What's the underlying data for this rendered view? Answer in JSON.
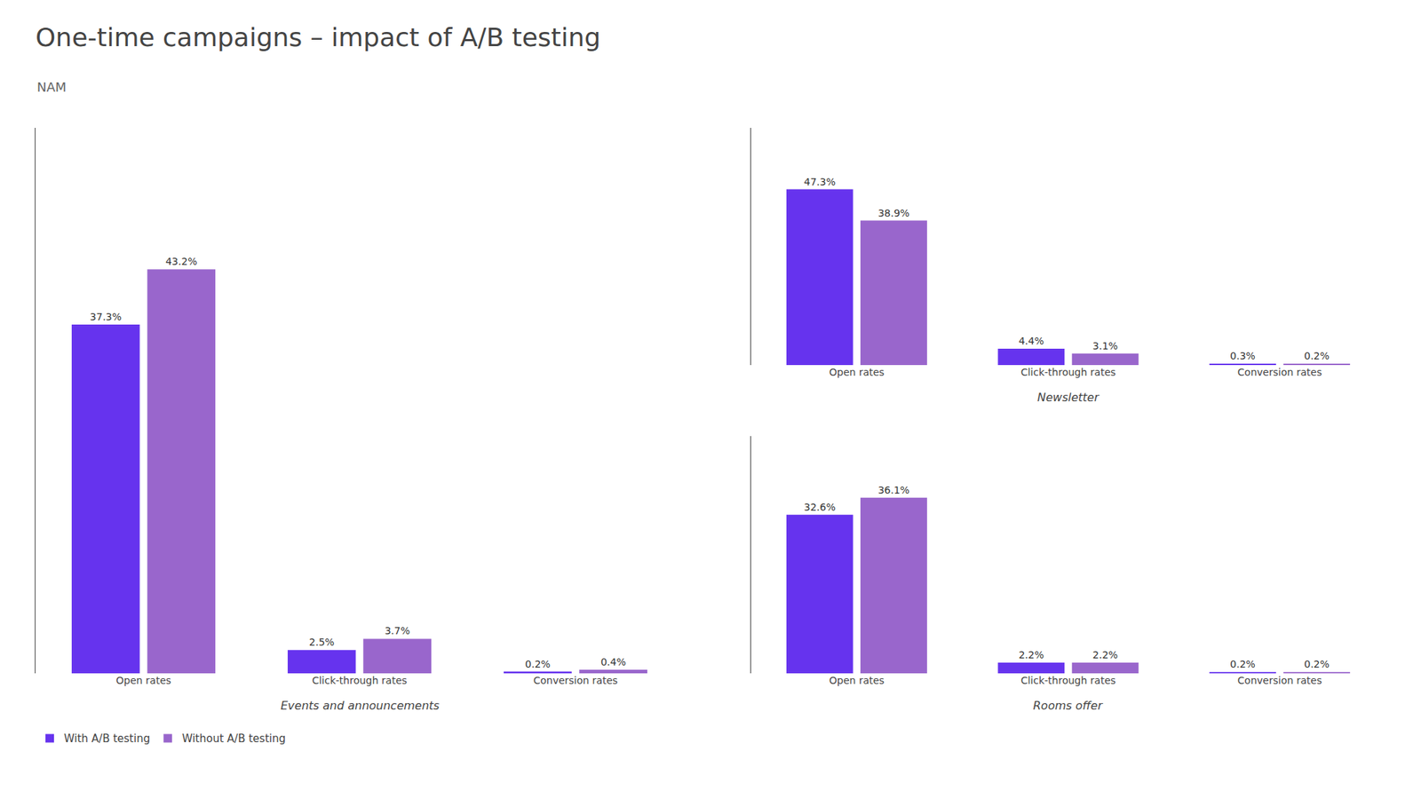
{
  "title": "One-time campaigns – impact of A/B testing",
  "subtitle": "NAM",
  "legend": "lower left",
  "chart_data": [
    {
      "type": "bar",
      "title": "Events and announcements",
      "categories": [
        "Open rates",
        "Click-through rates",
        "Conversion rates"
      ],
      "series": [
        {
          "name": "With A/B testing",
          "color": "#6633ee",
          "values": [
            37.3,
            2.5,
            0.2
          ],
          "value_labels": [
            "37.3%",
            "2.5%",
            "0.2%"
          ]
        },
        {
          "name": "Without A/B testing",
          "color": "#9966cc",
          "values": [
            43.2,
            3.7,
            0.4
          ],
          "value_labels": [
            "43.2%",
            "3.7%",
            "0.4%"
          ]
        }
      ],
      "ylim": [
        0,
        58.32
      ],
      "data_labels": true,
      "tick_labels": "x",
      "grid": false
    },
    {
      "type": "bar",
      "title": "Newsletter",
      "categories": [
        "Open rates",
        "Click-through rates",
        "Conversion rates"
      ],
      "series": [
        {
          "name": "With A/B testing",
          "color": "#6633ee",
          "values": [
            47.3,
            4.4,
            0.3
          ],
          "value_labels": [
            "47.3%",
            "4.4%",
            "0.3%"
          ]
        },
        {
          "name": "Without A/B testing",
          "color": "#9966cc",
          "values": [
            38.9,
            3.1,
            0.2
          ],
          "value_labels": [
            "38.9%",
            "3.1%",
            "0.2%"
          ]
        }
      ],
      "ylim": [
        0,
        63.855
      ],
      "data_labels": true,
      "tick_labels": "x",
      "grid": false
    },
    {
      "type": "bar",
      "title": "Rooms offer",
      "categories": [
        "Open rates",
        "Click-through rates",
        "Conversion rates"
      ],
      "series": [
        {
          "name": "With A/B testing",
          "color": "#6633ee",
          "values": [
            32.6,
            2.2,
            0.2
          ],
          "value_labels": [
            "32.6%",
            "2.2%",
            "0.2%"
          ]
        },
        {
          "name": "Without A/B testing",
          "color": "#9966cc",
          "values": [
            36.1,
            2.2,
            0.2
          ],
          "value_labels": [
            "36.1%",
            "2.2%",
            "0.2%"
          ]
        }
      ],
      "ylim": [
        0,
        48.735
      ],
      "data_labels": true,
      "tick_labels": "x",
      "grid": false
    }
  ]
}
